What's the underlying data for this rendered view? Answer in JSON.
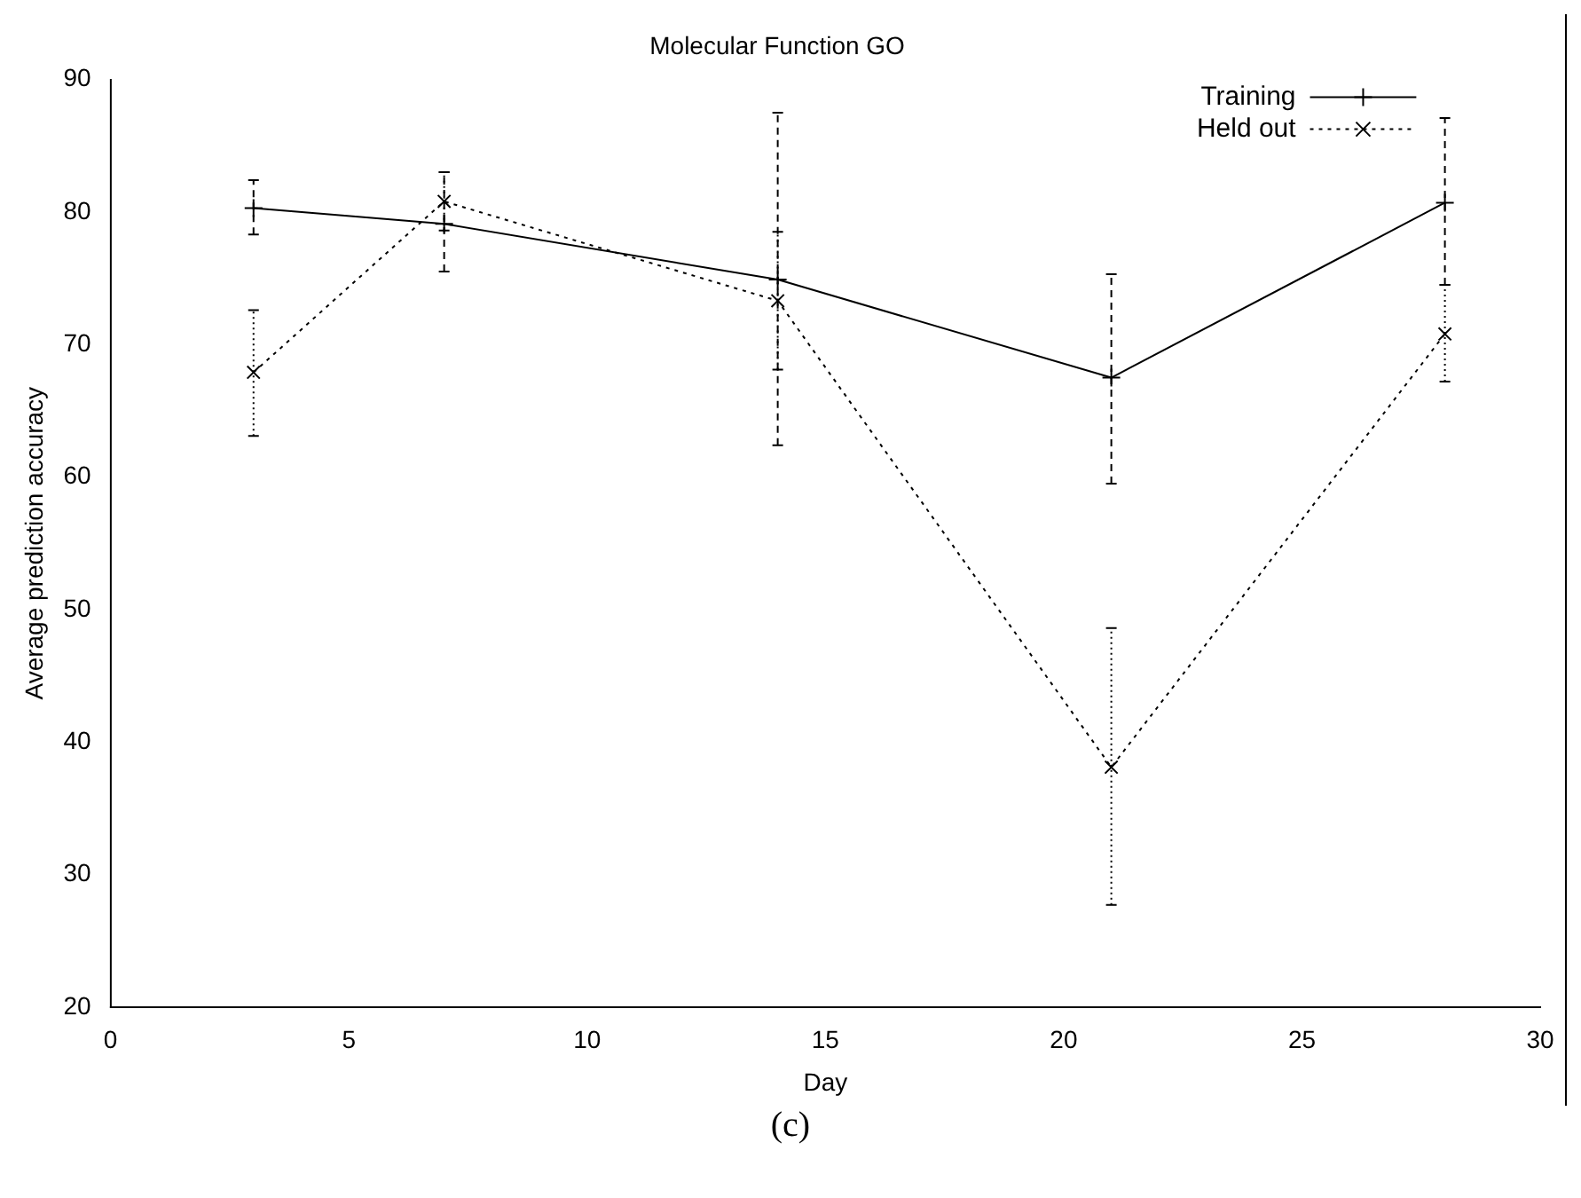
{
  "chart_data": {
    "type": "line",
    "title": "Molecular Function GO",
    "xlabel": "Day",
    "ylabel": "Average prediction accuracy",
    "annotations": [
      "(c)"
    ],
    "xlim": [
      0,
      30
    ],
    "xticks": [
      0,
      5,
      10,
      15,
      20,
      25,
      30
    ],
    "ylim": [
      20,
      90
    ],
    "yticks": [
      20,
      30,
      40,
      50,
      60,
      70,
      80,
      90
    ],
    "grid": false,
    "legend": "top right",
    "marker": "cross",
    "series": [
      {
        "name": "Training",
        "color": "#000000",
        "line_style": "solid",
        "x": [
          3,
          7,
          14,
          21,
          28
        ],
        "values": [
          80.3,
          79.1,
          74.9,
          67.5,
          80.7
        ],
        "errors": [
          [
            78.3,
            82.4
          ],
          [
            75.5,
            83
          ],
          [
            62.4,
            87.5
          ],
          [
            59.5,
            75.3
          ],
          [
            74.5,
            87.1
          ]
        ]
      },
      {
        "name": "Held out",
        "color": "#000000",
        "line_style": "dotted",
        "x": [
          3,
          7,
          14,
          21,
          28
        ],
        "values": [
          67.9,
          80.8,
          73.3,
          38.1,
          70.8
        ],
        "errors": [
          [
            63.1,
            72.6
          ],
          [
            78.6,
            83
          ],
          [
            68.1,
            78.5
          ],
          [
            27.7,
            48.6
          ],
          [
            67.2,
            74.5
          ]
        ]
      }
    ]
  }
}
